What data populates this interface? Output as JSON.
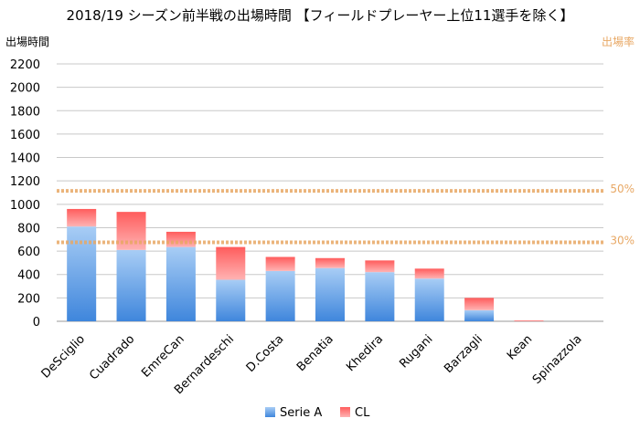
{
  "chart_data": {
    "type": "bar",
    "stacked": true,
    "title": "2018/19 シーズン前半戦の出場時間 【フィールドプレーヤー上位11選手を除く】",
    "ylabel": "出場時間",
    "ylabel_right": "出場率",
    "ylim": [
      0,
      2200
    ],
    "yticks": [
      0,
      200,
      400,
      600,
      800,
      1000,
      1200,
      1400,
      1600,
      1800,
      2000,
      2200
    ],
    "grid": true,
    "legend_position": "bottom",
    "categories": [
      "DeSciglio",
      "Cuadrado",
      "EmreCan",
      "Bernardeschi",
      "D.Costa",
      "Benatia",
      "Khedira",
      "Rugani",
      "Barzagli",
      "Kean",
      "Spinazzola"
    ],
    "series": [
      {
        "name": "Serie A",
        "color": "#4a90e2",
        "values": [
          810,
          610,
          635,
          355,
          430,
          455,
          420,
          365,
          95,
          0,
          0
        ]
      },
      {
        "name": "CL",
        "color": "#ff6b6b",
        "values": [
          150,
          325,
          130,
          280,
          120,
          85,
          100,
          85,
          105,
          8,
          0
        ]
      }
    ],
    "reference_lines": [
      {
        "label": "50%",
        "value": 1115,
        "color": "#e8a865"
      },
      {
        "label": "30%",
        "value": 675,
        "color": "#e8a865"
      }
    ]
  }
}
